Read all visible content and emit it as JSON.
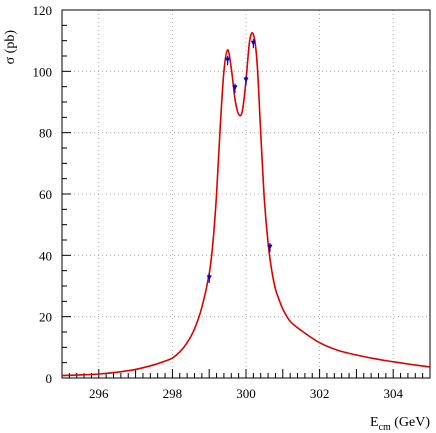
{
  "chart_data": {
    "type": "line",
    "title": "",
    "xlabel": {
      "main": "E",
      "sub": "cm",
      "unit": " (GeV)"
    },
    "ylabel": "σ (pb)",
    "xlim": [
      295,
      305
    ],
    "ylim": [
      0,
      120
    ],
    "grid": true,
    "x_ticks": [
      296,
      298,
      300,
      302,
      304
    ],
    "y_ticks": [
      0,
      20,
      40,
      60,
      80,
      100,
      120
    ],
    "series": [
      {
        "kind": "curve",
        "color": "#dd0000",
        "x": [
          295.0,
          295.5,
          296.0,
          296.5,
          297.0,
          297.5,
          297.8,
          298.0,
          298.2,
          298.4,
          298.6,
          298.8,
          299.0,
          299.1,
          299.2,
          299.3,
          299.4,
          299.5,
          299.6,
          299.7,
          299.8,
          299.9,
          300.0,
          300.1,
          300.2,
          300.3,
          300.4,
          300.5,
          300.6,
          300.7,
          300.8,
          300.9,
          301.0,
          301.2,
          301.5,
          302.0,
          302.5,
          303.0,
          303.5,
          304.0,
          304.5,
          305.0
        ],
        "y": [
          0.8,
          1.0,
          1.3,
          1.9,
          2.8,
          4.3,
          5.5,
          6.5,
          8.5,
          11.5,
          16.0,
          23.0,
          34.0,
          44.0,
          60.0,
          82.0,
          100.0,
          107.0,
          101.0,
          91.0,
          86.0,
          87.0,
          97.0,
          110.0,
          112.0,
          103.0,
          80.0,
          58.0,
          44.0,
          35.0,
          29.0,
          25.5,
          22.5,
          18.5,
          15.5,
          11.5,
          9.0,
          7.5,
          6.3,
          5.3,
          4.4,
          3.6
        ]
      }
    ],
    "points": {
      "color": "#0000dd",
      "x": [
        299.0,
        299.5,
        299.7,
        300.0,
        300.2,
        300.65
      ],
      "y": [
        32.5,
        103.5,
        94.5,
        97.0,
        109.0,
        42.5
      ],
      "err": [
        1.5,
        1.5,
        1.5,
        1.5,
        1.5,
        1.5
      ]
    }
  }
}
